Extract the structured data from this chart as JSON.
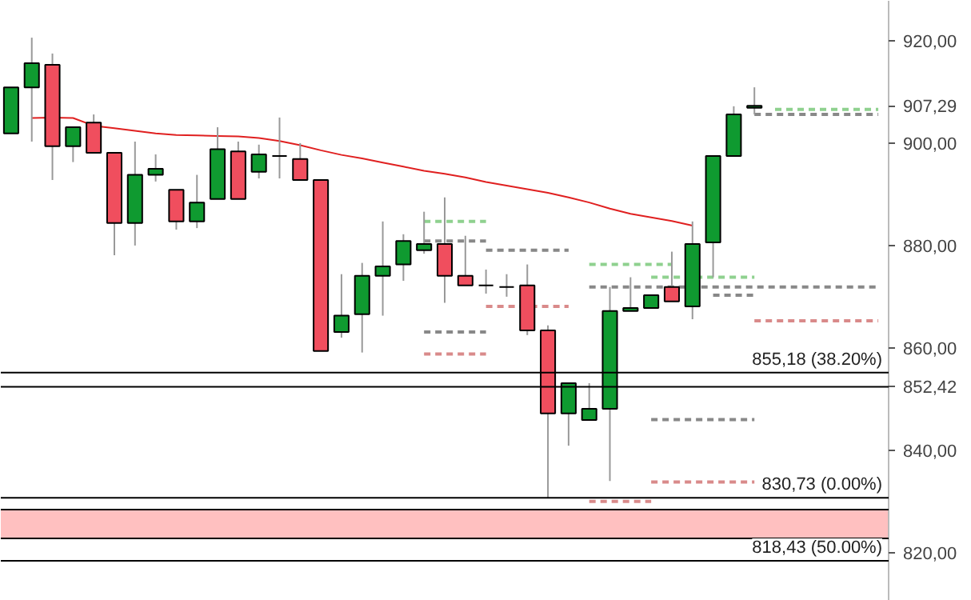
{
  "chart_data": {
    "type": "candlestick",
    "categories": [
      null,
      null,
      null,
      null,
      null,
      null,
      null,
      null,
      null,
      null,
      null,
      null,
      null,
      null,
      null,
      null,
      null,
      null,
      null,
      null,
      null,
      null,
      null,
      null,
      null,
      null,
      null,
      null,
      null,
      null,
      null,
      null,
      null,
      null,
      null,
      null,
      null,
      null,
      null,
      null,
      null,
      null,
      null
    ],
    "ohlc": [
      [
        901.9,
        910.9,
        901.9,
        910.9
      ],
      [
        910.9,
        920.6,
        900.3,
        915.6
      ],
      [
        915.3,
        917.5,
        892.8,
        899.4
      ],
      [
        899.4,
        903.1,
        896.3,
        903.1
      ],
      [
        904.0,
        905.6,
        898.1,
        898.1
      ],
      [
        898.1,
        898.1,
        878.1,
        884.4
      ],
      [
        884.4,
        900.3,
        880.0,
        893.8
      ],
      [
        893.8,
        897.8,
        892.5,
        895.0
      ],
      [
        890.9,
        890.9,
        883.1,
        884.7
      ],
      [
        884.7,
        893.8,
        883.4,
        888.4
      ],
      [
        889.1,
        903.1,
        889.1,
        898.8
      ],
      [
        898.4,
        900.3,
        889.1,
        889.1
      ],
      [
        894.4,
        899.7,
        893.1,
        897.8
      ],
      [
        897.5,
        905.0,
        893.1,
        897.5
      ],
      [
        896.9,
        900.0,
        892.8,
        892.8
      ],
      [
        892.8,
        892.8,
        859.4,
        859.4
      ],
      [
        863.1,
        874.4,
        862.0,
        866.3
      ],
      [
        866.6,
        876.6,
        859.1,
        874.1
      ],
      [
        874.1,
        884.7,
        866.3,
        875.9
      ],
      [
        876.3,
        882.2,
        873.1,
        880.9
      ],
      [
        879.1,
        886.6,
        878.4,
        880.3
      ],
      [
        880.3,
        889.4,
        868.8,
        874.1
      ],
      [
        874.1,
        881.9,
        872.2,
        872.2
      ],
      [
        872.2,
        875.3,
        870.6,
        872.2
      ],
      [
        871.9,
        874.4,
        870.0,
        871.9
      ],
      [
        872.2,
        876.3,
        862.5,
        863.4
      ],
      [
        863.4,
        864.4,
        830.7,
        847.2
      ],
      [
        847.2,
        853.1,
        840.9,
        853.1
      ],
      [
        845.9,
        853.1,
        845.9,
        848.1
      ],
      [
        848.1,
        871.9,
        834.0,
        867.2
      ],
      [
        867.2,
        873.8,
        867.2,
        867.8
      ],
      [
        867.8,
        870.3,
        867.8,
        870.3
      ],
      [
        871.9,
        878.8,
        869.1,
        869.1
      ],
      [
        868.1,
        884.7,
        865.6,
        880.3
      ],
      [
        880.6,
        897.5,
        873.8,
        897.5
      ],
      [
        897.5,
        907.2,
        897.5,
        905.6
      ],
      [
        906.9,
        910.9,
        905.6,
        907.29
      ],
      null,
      null,
      null,
      null,
      null,
      null
    ],
    "colors": [
      "#0f9a30",
      "#0f9a30",
      "#f04e5e",
      "#0f9a30",
      "#f04e5e",
      "#f04e5e",
      "#0f9a30",
      "#0f9a30",
      "#f04e5e",
      "#0f9a30",
      "#0f9a30",
      "#f04e5e",
      "#0f9a30",
      "#000000",
      "#f04e5e",
      "#f04e5e",
      "#0f9a30",
      "#0f9a30",
      "#0f9a30",
      "#0f9a30",
      "#0f9a30",
      "#f04e5e",
      "#f04e5e",
      "#000000",
      "#000000",
      "#f04e5e",
      "#f04e5e",
      "#0f9a30",
      "#0f9a30",
      "#0f9a30",
      "#0f9a30",
      "#0f9a30",
      "#f04e5e",
      "#0f9a30",
      "#0f9a30",
      "#0f9a30",
      "#0f9a30",
      null,
      null,
      null,
      null,
      null,
      null
    ],
    "series": [
      {
        "type": "line",
        "color": "#e02020",
        "line_style": "solid",
        "values": [
          null,
          904.9,
          905.0,
          904.9,
          903.4,
          902.9,
          902.4,
          901.9,
          901.6,
          901.5,
          901.4,
          901.3,
          901.0,
          900.4,
          899.6,
          898.6,
          897.7,
          897.0,
          896.2,
          895.4,
          894.6,
          894.0,
          893.3,
          892.4,
          891.7,
          891.0,
          890.3,
          889.4,
          888.4,
          887.2,
          886.2,
          885.5,
          884.8,
          883.9,
          null,
          null,
          null,
          null,
          null,
          null,
          null,
          null,
          null
        ]
      },
      {
        "type": "line",
        "color": "#8fd18f",
        "line_style": "dashed",
        "values": [
          null,
          null,
          null,
          null,
          null,
          null,
          null,
          null,
          null,
          null,
          null,
          null,
          null,
          null,
          null,
          null,
          null,
          null,
          null,
          null,
          884.7,
          884.7,
          884.7,
          884.7,
          null,
          null,
          null,
          null,
          null,
          null,
          null,
          null,
          null,
          null,
          null,
          null,
          null,
          null,
          null,
          null,
          null,
          null,
          null
        ]
      },
      {
        "type": "line",
        "color": "#888888",
        "line_style": "dashed",
        "values": [
          null,
          null,
          null,
          null,
          null,
          null,
          null,
          null,
          null,
          null,
          null,
          null,
          null,
          null,
          null,
          null,
          null,
          null,
          null,
          null,
          880.9,
          880.9,
          880.9,
          880.9,
          null,
          null,
          null,
          null,
          null,
          null,
          null,
          null,
          null,
          null,
          null,
          null,
          null,
          null,
          null,
          null,
          null,
          null,
          null
        ]
      },
      {
        "type": "line",
        "color": "#888888",
        "line_style": "dashed",
        "values": [
          null,
          null,
          null,
          null,
          null,
          null,
          null,
          null,
          null,
          null,
          null,
          null,
          null,
          null,
          null,
          null,
          null,
          null,
          null,
          null,
          863.1,
          863.1,
          863.1,
          863.1,
          null,
          null,
          null,
          null,
          null,
          null,
          null,
          null,
          null,
          null,
          null,
          null,
          null,
          null,
          null,
          null,
          null,
          null,
          null
        ]
      },
      {
        "type": "line",
        "color": "#d98a8a",
        "line_style": "dashed",
        "values": [
          null,
          null,
          null,
          null,
          null,
          null,
          null,
          null,
          null,
          null,
          null,
          null,
          null,
          null,
          null,
          null,
          null,
          null,
          null,
          null,
          858.8,
          858.8,
          858.8,
          858.8,
          null,
          null,
          null,
          null,
          null,
          null,
          null,
          null,
          null,
          null,
          null,
          null,
          null,
          null,
          null,
          null,
          null,
          null,
          null
        ]
      },
      {
        "type": "line",
        "color": "#888888",
        "line_style": "dashed",
        "values": [
          null,
          null,
          null,
          null,
          null,
          null,
          null,
          null,
          null,
          null,
          null,
          null,
          null,
          null,
          null,
          null,
          null,
          null,
          null,
          null,
          null,
          null,
          null,
          879.1,
          879.1,
          879.1,
          879.1,
          879.1,
          null,
          null,
          null,
          null,
          null,
          null,
          null,
          null,
          null,
          null,
          null,
          null,
          null,
          null,
          null
        ]
      },
      {
        "type": "line",
        "color": "#d98a8a",
        "line_style": "dashed",
        "values": [
          null,
          null,
          null,
          null,
          null,
          null,
          null,
          null,
          null,
          null,
          null,
          null,
          null,
          null,
          null,
          null,
          null,
          null,
          null,
          null,
          null,
          null,
          null,
          868.1,
          868.1,
          868.1,
          868.1,
          868.1,
          null,
          null,
          null,
          null,
          null,
          null,
          null,
          null,
          null,
          null,
          null,
          null,
          null,
          null,
          null
        ]
      },
      {
        "type": "line",
        "color": "#8fd18f",
        "line_style": "dashed",
        "values": [
          null,
          null,
          null,
          null,
          null,
          null,
          null,
          null,
          null,
          null,
          null,
          null,
          null,
          null,
          null,
          null,
          null,
          null,
          null,
          null,
          null,
          null,
          null,
          null,
          null,
          null,
          null,
          null,
          876.3,
          876.3,
          876.3,
          876.3,
          876.3,
          null,
          null,
          null,
          null,
          null,
          null,
          null,
          null,
          null,
          null
        ]
      },
      {
        "type": "line",
        "color": "#888888",
        "line_style": "dashed",
        "values": [
          null,
          null,
          null,
          null,
          null,
          null,
          null,
          null,
          null,
          null,
          null,
          null,
          null,
          null,
          null,
          null,
          null,
          null,
          null,
          null,
          null,
          null,
          null,
          null,
          null,
          null,
          null,
          null,
          871.9,
          871.9,
          871.9,
          871.9,
          871.9,
          871.9,
          871.9,
          871.9,
          871.9,
          871.9,
          871.9,
          871.9,
          871.9,
          871.9,
          871.9
        ]
      },
      {
        "type": "line",
        "color": "#d98a8a",
        "line_style": "dashed",
        "values": [
          null,
          null,
          null,
          null,
          null,
          null,
          null,
          null,
          null,
          null,
          null,
          null,
          null,
          null,
          null,
          null,
          null,
          null,
          null,
          null,
          null,
          null,
          null,
          null,
          null,
          null,
          null,
          null,
          830.0,
          830.0,
          830.0,
          830.0,
          null,
          null,
          null,
          null,
          null,
          null,
          null,
          null,
          null,
          null,
          null
        ]
      },
      {
        "type": "line",
        "color": "#8fd18f",
        "line_style": "dashed",
        "values": [
          null,
          null,
          null,
          null,
          null,
          null,
          null,
          null,
          null,
          null,
          null,
          null,
          null,
          null,
          null,
          null,
          null,
          null,
          null,
          null,
          null,
          null,
          null,
          null,
          null,
          null,
          null,
          null,
          null,
          null,
          null,
          873.8,
          873.8,
          873.8,
          873.8,
          873.8,
          873.8,
          null,
          null,
          null,
          null,
          null,
          null
        ]
      },
      {
        "type": "line",
        "color": "#888888",
        "line_style": "dashed",
        "values": [
          null,
          null,
          null,
          null,
          null,
          null,
          null,
          null,
          null,
          null,
          null,
          null,
          null,
          null,
          null,
          null,
          null,
          null,
          null,
          null,
          null,
          null,
          null,
          null,
          null,
          null,
          null,
          null,
          null,
          null,
          null,
          null,
          null,
          null,
          870.3,
          870.3,
          870.3,
          null,
          null,
          null,
          null,
          null,
          null
        ]
      },
      {
        "type": "line",
        "color": "#888888",
        "line_style": "dashed",
        "values": [
          null,
          null,
          null,
          null,
          null,
          null,
          null,
          null,
          null,
          null,
          null,
          null,
          null,
          null,
          null,
          null,
          null,
          null,
          null,
          null,
          null,
          null,
          null,
          null,
          null,
          null,
          null,
          null,
          null,
          null,
          null,
          846.0,
          846.0,
          846.0,
          846.0,
          846.0,
          846.0,
          null,
          null,
          null,
          null,
          null,
          null
        ]
      },
      {
        "type": "line",
        "color": "#d98a8a",
        "line_style": "dashed",
        "values": [
          null,
          null,
          null,
          null,
          null,
          null,
          null,
          null,
          null,
          null,
          null,
          null,
          null,
          null,
          null,
          null,
          null,
          null,
          null,
          null,
          null,
          null,
          null,
          null,
          null,
          null,
          null,
          null,
          null,
          null,
          null,
          833.8,
          833.8,
          833.8,
          833.8,
          833.8,
          833.8,
          null,
          null,
          null,
          null,
          null,
          null
        ]
      },
      {
        "type": "line",
        "color": "#d98a8a",
        "line_style": "dashed",
        "values": [
          null,
          null,
          null,
          null,
          null,
          null,
          null,
          null,
          null,
          null,
          null,
          null,
          null,
          null,
          null,
          null,
          null,
          null,
          null,
          null,
          null,
          null,
          null,
          null,
          null,
          null,
          null,
          null,
          null,
          null,
          null,
          null,
          null,
          null,
          null,
          null,
          865.3,
          865.3,
          865.3,
          865.3,
          865.3,
          865.3,
          865.3
        ]
      },
      {
        "type": "line",
        "color": "#888888",
        "line_style": "dashed",
        "values": [
          null,
          null,
          null,
          null,
          null,
          null,
          null,
          null,
          null,
          null,
          null,
          null,
          null,
          null,
          null,
          null,
          null,
          null,
          null,
          null,
          null,
          null,
          null,
          null,
          null,
          null,
          null,
          null,
          null,
          null,
          null,
          null,
          null,
          null,
          null,
          null,
          905.6,
          905.6,
          905.6,
          905.6,
          905.6,
          905.6,
          905.6
        ]
      },
      {
        "type": "line",
        "color": "#8fd18f",
        "line_style": "dashed",
        "values": [
          null,
          null,
          null,
          null,
          null,
          null,
          null,
          null,
          null,
          null,
          null,
          null,
          null,
          null,
          null,
          null,
          null,
          null,
          null,
          null,
          null,
          null,
          null,
          null,
          null,
          null,
          null,
          null,
          null,
          null,
          null,
          null,
          null,
          null,
          null,
          null,
          null,
          906.6,
          906.6,
          906.6,
          906.6,
          906.6,
          906.6
        ]
      }
    ],
    "ylim": [
      810.6,
      927.8
    ],
    "yticks": [
      {
        "value": 820,
        "label": "820,00"
      },
      {
        "value": 840,
        "label": "840,00"
      },
      {
        "value": 852.42,
        "label": "852,42"
      },
      {
        "value": 860,
        "label": "860,00"
      },
      {
        "value": 880,
        "label": "880,00"
      },
      {
        "value": 900,
        "label": "900,00"
      },
      {
        "value": 907.29,
        "label": "907,29"
      },
      {
        "value": 920,
        "label": "920,00"
      }
    ],
    "ref_lines": [
      {
        "axis": "y",
        "value": 855.18,
        "label": "855,18 (38.20%)",
        "color": "#000000"
      },
      {
        "axis": "y",
        "value": 852.42,
        "color": "#000000"
      },
      {
        "axis": "y",
        "value": 830.73,
        "label": "830,73 (0.00%)",
        "color": "#000000"
      },
      {
        "axis": "y",
        "value": 828.4,
        "color": "#000000"
      },
      {
        "axis": "y",
        "value": 822.8,
        "color": "#000000"
      },
      {
        "axis": "y",
        "value": 818.43,
        "label": "818,43 (50.00%)",
        "color": "#000000"
      }
    ],
    "bands": [
      {
        "axis": "y",
        "from": 822.8,
        "to": 828.4,
        "color": "#ffc0c0"
      }
    ],
    "grid": false
  }
}
